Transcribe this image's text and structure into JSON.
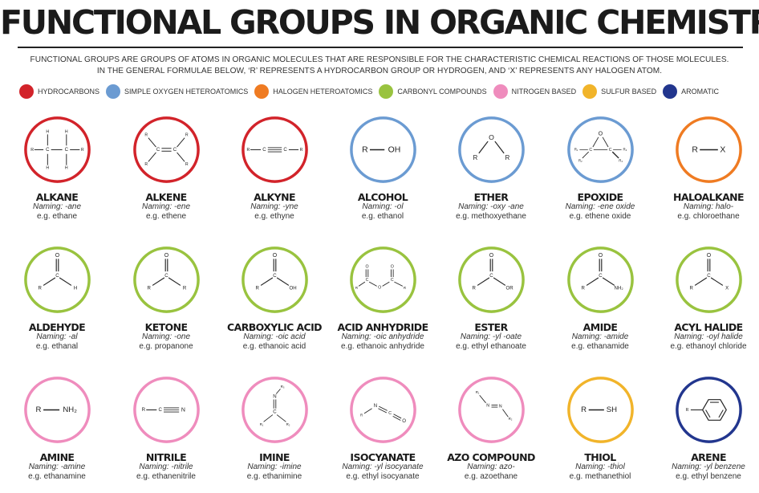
{
  "title": "FUNCTIONAL GROUPS IN ORGANIC CHEMISTRY",
  "intro_line1": "FUNCTIONAL GROUPS ARE GROUPS OF ATOMS IN ORGANIC MOLECULES THAT ARE RESPONSIBLE FOR THE CHARACTERISTIC CHEMICAL REACTIONS OF THOSE MOLECULES.",
  "intro_line2": "IN THE GENERAL FORMULAE BELOW, ‘R’ REPRESENTS A HYDROCARBON GROUP OR HYDROGEN, AND ‘X’ REPRESENTS ANY HALOGEN ATOM.",
  "legend": [
    {
      "label": "HYDROCARBONS",
      "color": "#d2232a"
    },
    {
      "label": "SIMPLE OXYGEN HETEROATOMICS",
      "color": "#6b9bd2"
    },
    {
      "label": "HALOGEN HETEROATOMICS",
      "color": "#ef7b22"
    },
    {
      "label": "CARBONYL COMPOUNDS",
      "color": "#99c33f"
    },
    {
      "label": "NITROGEN BASED",
      "color": "#ef8cbd"
    },
    {
      "label": "SULFUR BASED",
      "color": "#f1b42a"
    },
    {
      "label": "AROMATIC",
      "color": "#22368e"
    }
  ],
  "groups": [
    {
      "name": "ALKANE",
      "naming": "Naming: -ane",
      "example": "e.g. ethane",
      "color": "#d2232a",
      "icon": "alkane-structure-icon"
    },
    {
      "name": "ALKENE",
      "naming": "Naming: -ene",
      "example": "e.g. ethene",
      "color": "#d2232a",
      "icon": "alkene-structure-icon"
    },
    {
      "name": "ALKYNE",
      "naming": "Naming: -yne",
      "example": "e.g. ethyne",
      "color": "#d2232a",
      "icon": "alkyne-structure-icon"
    },
    {
      "name": "ALCOHOL",
      "naming": "Naming: -ol",
      "example": "e.g. ethanol",
      "color": "#6b9bd2",
      "icon": "alcohol-structure-icon"
    },
    {
      "name": "ETHER",
      "naming": "Naming: -oxy -ane",
      "example": "e.g. methoxyethane",
      "color": "#6b9bd2",
      "icon": "ether-structure-icon"
    },
    {
      "name": "EPOXIDE",
      "naming": "Naming: -ene oxide",
      "example": "e.g. ethene oxide",
      "color": "#6b9bd2",
      "icon": "epoxide-structure-icon"
    },
    {
      "name": "HALOALKANE",
      "naming": "Naming: halo-",
      "example": "e.g. chloroethane",
      "color": "#ef7b22",
      "icon": "haloalkane-structure-icon"
    },
    {
      "name": "ALDEHYDE",
      "naming": "Naming: -al",
      "example": "e.g. ethanal",
      "color": "#99c33f",
      "icon": "aldehyde-structure-icon"
    },
    {
      "name": "KETONE",
      "naming": "Naming: -one",
      "example": "e.g. propanone",
      "color": "#99c33f",
      "icon": "ketone-structure-icon"
    },
    {
      "name": "CARBOXYLIC ACID",
      "naming": "Naming: -oic acid",
      "example": "e.g. ethanoic acid",
      "color": "#99c33f",
      "icon": "carboxylic-acid-structure-icon"
    },
    {
      "name": "ACID ANHYDRIDE",
      "naming": "Naming: -oic anhydride",
      "example": "e.g. ethanoic anhydride",
      "color": "#99c33f",
      "icon": "acid-anhydride-structure-icon"
    },
    {
      "name": "ESTER",
      "naming": "Naming: -yl -oate",
      "example": "e.g. ethyl ethanoate",
      "color": "#99c33f",
      "icon": "ester-structure-icon"
    },
    {
      "name": "AMIDE",
      "naming": "Naming: -amide",
      "example": "e.g. ethanamide",
      "color": "#99c33f",
      "icon": "amide-structure-icon"
    },
    {
      "name": "ACYL HALIDE",
      "naming": "Naming: -oyl halide",
      "example": "e.g. ethanoyl chloride",
      "color": "#99c33f",
      "icon": "acyl-halide-structure-icon"
    },
    {
      "name": "AMINE",
      "naming": "Naming: -amine",
      "example": "e.g. ethanamine",
      "color": "#ef8cbd",
      "icon": "amine-structure-icon"
    },
    {
      "name": "NITRILE",
      "naming": "Naming: -nitrile",
      "example": "e.g. ethanenitrile",
      "color": "#ef8cbd",
      "icon": "nitrile-structure-icon"
    },
    {
      "name": "IMINE",
      "naming": "Naming: -imine",
      "example": "e.g. ethanimine",
      "color": "#ef8cbd",
      "icon": "imine-structure-icon"
    },
    {
      "name": "ISOCYANATE",
      "naming": "Naming: -yl isocyanate",
      "example": "e.g. ethyl isocyanate",
      "color": "#ef8cbd",
      "icon": "isocyanate-structure-icon"
    },
    {
      "name": "AZO COMPOUND",
      "naming": "Naming: azo-",
      "example": "e.g. azoethane",
      "color": "#ef8cbd",
      "icon": "azo-compound-structure-icon"
    },
    {
      "name": "THIOL",
      "naming": "Naming: -thiol",
      "example": "e.g. methanethiol",
      "color": "#f1b42a",
      "icon": "thiol-structure-icon"
    },
    {
      "name": "ARENE",
      "naming": "Naming: -yl benzene",
      "example": "e.g. ethyl benzene",
      "color": "#22368e",
      "icon": "arene-structure-icon"
    }
  ]
}
